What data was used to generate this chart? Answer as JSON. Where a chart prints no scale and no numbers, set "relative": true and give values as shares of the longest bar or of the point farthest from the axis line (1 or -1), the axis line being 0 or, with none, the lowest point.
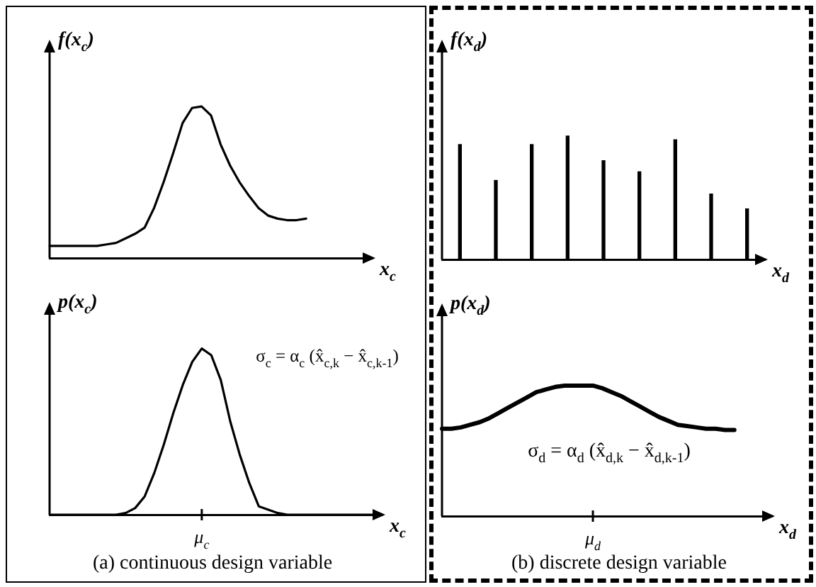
{
  "chart_data": [
    {
      "type": "line",
      "ylabel": "f(x$_{c}$)",
      "xlabel": "x$_{c}$",
      "relative": true,
      "categories": [
        null,
        null,
        null,
        null,
        null,
        null,
        null,
        null,
        null,
        null,
        null,
        null,
        null,
        null,
        null,
        null,
        null,
        null,
        null,
        null,
        null,
        null,
        null,
        null,
        null,
        null,
        null,
        null,
        null,
        null,
        null,
        null,
        null,
        null,
        null
      ],
      "series": [
        {
          "color": "#000000",
          "values": [
            0.08,
            0.08,
            0.08,
            0.08,
            0.08,
            0.08,
            0.09,
            0.1,
            0.13,
            0.16,
            0.2,
            0.33,
            0.5,
            0.69,
            0.89,
            0.99,
            1,
            0.94,
            0.75,
            0.61,
            0.5,
            0.41,
            0.33,
            0.28,
            0.26,
            0.25,
            0.25,
            0.26,
            null,
            null,
            null,
            null,
            null,
            null,
            null
          ]
        }
      ]
    },
    {
      "type": "line",
      "ylabel": "p(x$_{c}$)",
      "xlabel": "x$_{c}$",
      "relative": true,
      "categories": [
        null,
        null,
        null,
        null,
        null,
        null,
        null,
        null,
        null,
        null,
        null,
        null,
        null,
        null,
        null,
        null,
        null,
        null,
        null,
        null,
        null,
        null,
        null,
        null,
        null,
        null,
        null,
        null,
        null,
        null,
        null,
        null,
        null,
        null,
        null,
        null
      ],
      "series": [
        {
          "color": "#000000",
          "values": [
            0,
            0,
            0,
            0,
            0,
            0,
            0,
            0,
            0.01,
            0.04,
            0.11,
            0.25,
            0.42,
            0.61,
            0.78,
            0.92,
            1,
            0.96,
            0.81,
            0.56,
            0.36,
            0.19,
            0.05,
            0.03,
            0.01,
            0,
            0,
            0,
            0,
            0,
            0,
            0,
            0,
            0,
            0,
            null
          ]
        }
      ],
      "annotations": [
        "σ$_{c}$ = α$_{c}$ (x̂$_{c,k}$ − x̂$_{c,k-1}$)",
        "(a) continuous design variable",
        "μ$_{c}$"
      ]
    },
    {
      "type": "bar",
      "ylabel": "f(x$_{d}$)",
      "xlabel": "x$_{d}$",
      "relative": true,
      "categories": [
        null,
        null,
        null,
        null,
        null,
        null,
        null,
        null,
        null
      ],
      "series": [
        {
          "color": "#000000",
          "values": [
            0.93,
            0.64,
            0.93,
            1,
            0.8,
            0.71,
            0.97,
            0.53,
            0.41
          ]
        }
      ]
    },
    {
      "type": "line",
      "ylabel": "p(x$_{d}$)",
      "xlabel": "x$_{d}$",
      "relative": true,
      "categories": [
        null,
        null,
        null,
        null,
        null,
        null,
        null,
        null,
        null,
        null,
        null,
        null,
        null,
        null,
        null,
        null,
        null,
        null,
        null,
        null,
        null,
        null,
        null,
        null,
        null,
        null,
        null,
        null,
        null,
        null,
        null,
        null,
        null,
        null,
        null,
        null
      ],
      "series": [
        {
          "color": "#000000",
          "values": [
            0.67,
            0.67,
            0.68,
            0.7,
            0.72,
            0.75,
            0.79,
            0.83,
            0.87,
            0.91,
            0.95,
            0.97,
            0.99,
            1,
            1,
            1,
            1,
            0.98,
            0.95,
            0.92,
            0.88,
            0.84,
            0.8,
            0.76,
            0.73,
            0.7,
            0.69,
            0.68,
            0.67,
            0.67,
            0.66,
            0.66,
            null,
            null,
            null,
            null
          ]
        }
      ],
      "annotations": [
        "σ$_{d}$ = α$_{d}$ (x̂$_{d,k}$ − x̂$_{d,k-1}$)",
        "(b) discrete design variable",
        "μ$_{d}$"
      ]
    }
  ]
}
